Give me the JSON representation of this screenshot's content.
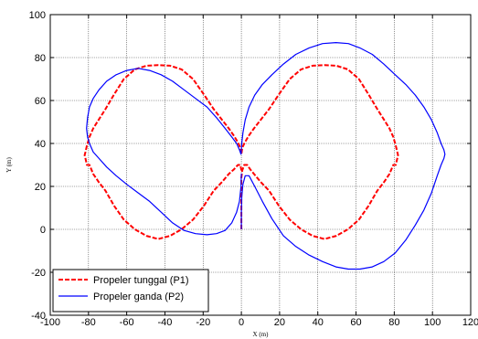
{
  "chart_data": {
    "type": "line",
    "xlabel": "X (m)",
    "ylabel": "Y (m)",
    "xlim": [
      -100,
      120
    ],
    "ylim": [
      -40,
      100
    ],
    "xticks": [
      "-100",
      "-80",
      "-60",
      "-40",
      "-20",
      "0",
      "20",
      "40",
      "60",
      "80",
      "100",
      "120"
    ],
    "yticks": [
      "-40",
      "-20",
      "0",
      "20",
      "40",
      "60",
      "80",
      "100"
    ],
    "grid": true,
    "legend_position": "bottom-left",
    "series": [
      {
        "name": "Propeler tunggal (P1)",
        "color": "#ff0000",
        "style": "dashed",
        "x": [
          0,
          0,
          0,
          0,
          0.5,
          1.5,
          3,
          4.6,
          6.6,
          10.1,
          14.5,
          19.6,
          25.3,
          31.3,
          37.3,
          43.5,
          49.7,
          55.7,
          61.5,
          66.6,
          71.1,
          74.7,
          77.5,
          79.5,
          80.8,
          81.6,
          82,
          81.6,
          80.8,
          79.5,
          77.5,
          74.7,
          71.1,
          66.6,
          61.5,
          55.7,
          49.7,
          43.5,
          37.3,
          31.3,
          25.3,
          19.6,
          14.5,
          10.1,
          6.6,
          3.8,
          1.8,
          0.5,
          0,
          -0.5,
          -1.8,
          -3.8,
          -6.6,
          -10.1,
          -14.5,
          -19.6,
          -25.3,
          -31.3,
          -37.3,
          -43.5,
          -49.7,
          -55.7,
          -61.5,
          -66.6,
          -71.1,
          -74.7,
          -77.5,
          -79.5,
          -80.8,
          -81.6,
          -82,
          -81.6,
          -80.8,
          -79.5,
          -77.5,
          -74.7,
          -71.1,
          -66.6,
          -61.5,
          -55.7,
          -49.7,
          -43.5,
          -37.3,
          -31.3,
          -25.3,
          -19.6,
          -14.5,
          -10.1,
          -6.6,
          -3.8,
          -1.8,
          -0.5,
          0
        ],
        "y": [
          0,
          10,
          18,
          24,
          27.5,
          30,
          30,
          28,
          25.8,
          22.1,
          18,
          11,
          4.5,
          0,
          -3,
          -4.5,
          -3,
          0,
          4.5,
          11,
          18,
          22.1,
          25.8,
          30,
          30,
          33,
          34.5,
          36,
          39,
          43,
          47,
          51,
          56,
          62.8,
          70,
          74.5,
          76.2,
          76.5,
          76.2,
          74.5,
          70,
          62.8,
          56,
          51,
          47,
          43.5,
          40.5,
          38,
          35,
          38,
          40.5,
          43.5,
          47,
          51,
          56,
          62.8,
          70,
          74.5,
          76.2,
          76.5,
          76.2,
          74.5,
          70,
          62.8,
          56,
          51,
          47,
          43,
          39,
          36,
          34.5,
          33,
          30,
          30,
          25.8,
          22.1,
          18,
          11,
          4.5,
          0,
          -3,
          -4.5,
          -3,
          0,
          4.5,
          11,
          18,
          22.1,
          25.8,
          28,
          30,
          30,
          27.5
        ]
      },
      {
        "name": "Propeler ganda (P2)",
        "color": "#0000ff",
        "style": "solid",
        "x": [
          0,
          0,
          0.2,
          0.8,
          2,
          4,
          7,
          11,
          16,
          22,
          28.5,
          35.5,
          42.5,
          49.5,
          56,
          62,
          68.5,
          74.5,
          80.5,
          86,
          91,
          95.5,
          99.5,
          102.5,
          104.5,
          106,
          106.5,
          106,
          104.5,
          102.5,
          99.5,
          95.5,
          91,
          86,
          80.5,
          74.5,
          68.5,
          62,
          56,
          49.5,
          42.5,
          35.5,
          28.5,
          22,
          16,
          11,
          7,
          4,
          2,
          0.8,
          0.2,
          0,
          -0.2,
          -1,
          -2.5,
          -5,
          -8.5,
          -13,
          -18,
          -24,
          -30,
          -36,
          -42,
          -48,
          -54,
          -60,
          -65.5,
          -70.5,
          -74.5,
          -77.5,
          -79.5,
          -80.5,
          -81,
          -80.5,
          -79.5,
          -77.5,
          -74.5,
          -70.5,
          -65.5,
          -60,
          -54,
          -48,
          -42,
          -36,
          -30,
          -24,
          -18,
          -13,
          -8.5,
          -5,
          -2.5,
          -1,
          -0.2,
          0
        ],
        "y": [
          0,
          8,
          15,
          21,
          25,
          25,
          20,
          13,
          5,
          -3,
          -8,
          -12,
          -15,
          -17.5,
          -18.5,
          -18.5,
          -17.5,
          -15,
          -11,
          -5,
          2,
          9,
          17,
          25,
          30,
          33,
          35,
          37,
          40,
          45,
          51,
          57,
          62.5,
          67.5,
          72,
          77,
          81.5,
          84.5,
          86.5,
          87,
          86.5,
          84.5,
          81.5,
          77,
          72,
          67.5,
          62.5,
          57,
          51,
          45,
          40,
          37,
          35,
          37,
          40,
          43,
          47,
          52,
          57,
          61,
          65,
          69,
          72,
          74,
          75,
          74,
          72,
          69,
          65,
          61,
          57,
          52,
          47,
          43,
          40,
          36,
          33,
          29,
          25,
          21,
          17,
          13,
          8,
          3,
          -0.5,
          -2,
          -2.5,
          -2,
          -0.5,
          3,
          8,
          13,
          20,
          26
        ]
      }
    ]
  }
}
